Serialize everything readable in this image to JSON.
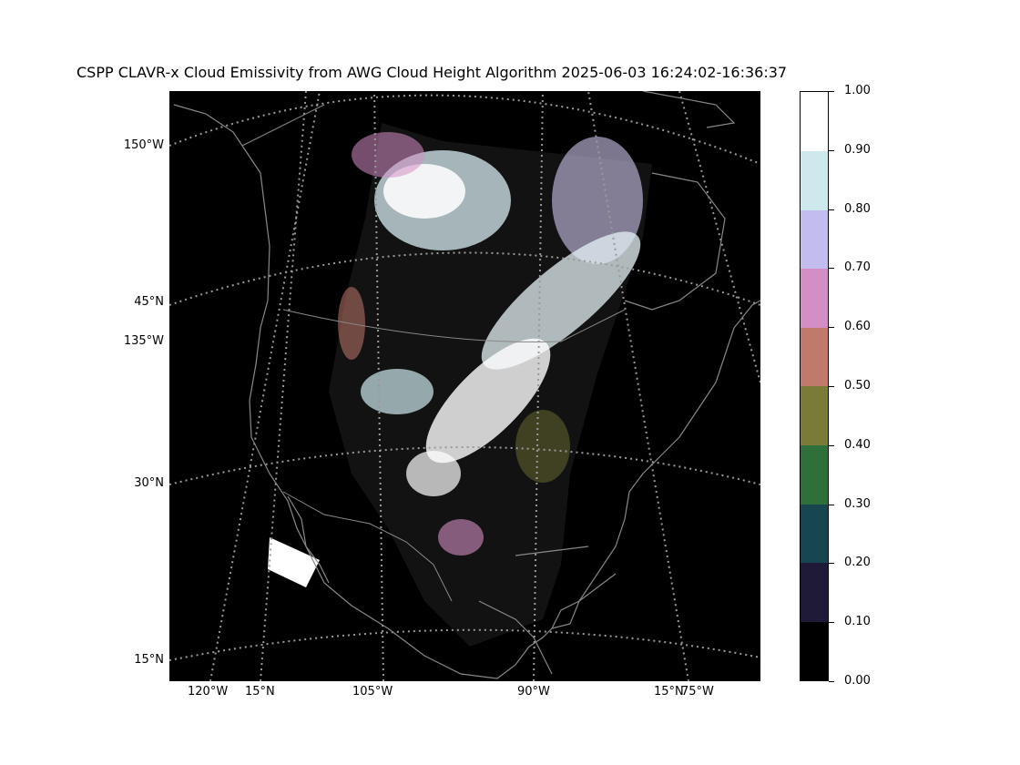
{
  "title": "CSPP CLAVR-x Cloud Emissivity from AWG Cloud Height Algorithm 2025-06-03 16:24:02-16:36:37",
  "map": {
    "background_color": "#000000",
    "coastline_color": "#888888",
    "graticule_color": "#9a9a9a",
    "left_labels": [
      "150°W",
      "45°N",
      "135°W",
      "30°N",
      "15°N"
    ],
    "bottom_labels": [
      "120°W",
      "15°N",
      "105°W",
      "90°W",
      "15°N",
      "75°W"
    ]
  },
  "colorbar": {
    "ticks": [
      "1.00",
      "0.90",
      "0.80",
      "0.70",
      "0.60",
      "0.50",
      "0.40",
      "0.30",
      "0.20",
      "0.10",
      "0.00"
    ],
    "colors": [
      "#000000",
      "#1e1a38",
      "#174650",
      "#2e6f3a",
      "#7b7b38",
      "#c07a6c",
      "#d38ec5",
      "#c3bdef",
      "#cde9ee",
      "#ffffff"
    ]
  }
}
